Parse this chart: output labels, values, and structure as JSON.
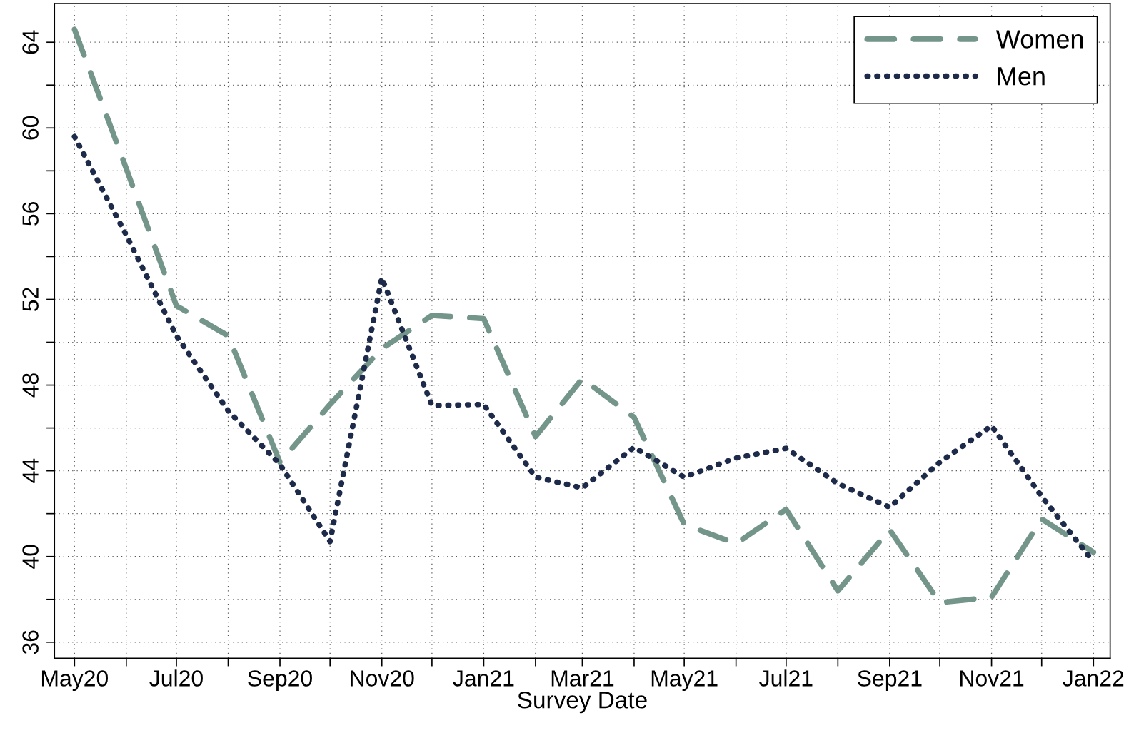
{
  "chart_data": {
    "type": "line",
    "xlabel": "Survey Date",
    "x": [
      "2020-05",
      "2020-06",
      "2020-07",
      "2020-08",
      "2020-09",
      "2020-10",
      "2020-11",
      "2020-12",
      "2021-01",
      "2021-02",
      "2021-03",
      "2021-04",
      "2021-05",
      "2021-06",
      "2021-07",
      "2021-08",
      "2021-09",
      "2021-10",
      "2021-11",
      "2021-12",
      "2022-01"
    ],
    "series": [
      {
        "name": "Women",
        "color": "#74958a",
        "line_style": "dashed",
        "values": [
          64.6,
          58.1,
          51.7,
          50.3,
          44.4,
          47.1,
          49.7,
          51.25,
          51.1,
          45.6,
          48.3,
          46.5,
          41.5,
          40.6,
          42.2,
          38.4,
          41.25,
          37.85,
          38.1,
          41.75,
          40.2
        ]
      },
      {
        "name": "Men",
        "color": "#1e2a4a",
        "line_style": "dotted",
        "values": [
          59.6,
          55.0,
          50.3,
          46.8,
          44.3,
          40.7,
          53.0,
          47.05,
          47.1,
          43.7,
          43.2,
          45.1,
          43.7,
          44.6,
          45.05,
          43.4,
          42.3,
          44.4,
          46.1,
          42.8,
          39.75
        ]
      }
    ],
    "xlim": [
      "2020-04-19",
      "2022-01-11"
    ],
    "xticks": [
      {
        "value": "2020-05",
        "label": "May20"
      },
      {
        "value": "2020-06",
        "label": null
      },
      {
        "value": "2020-07",
        "label": "Jul20"
      },
      {
        "value": "2020-08",
        "label": null
      },
      {
        "value": "2020-09",
        "label": "Sep20"
      },
      {
        "value": "2020-10",
        "label": null
      },
      {
        "value": "2020-11",
        "label": "Nov20"
      },
      {
        "value": "2020-12",
        "label": null
      },
      {
        "value": "2021-01",
        "label": "Jan21"
      },
      {
        "value": "2021-02",
        "label": null
      },
      {
        "value": "2021-03",
        "label": "Mar21"
      },
      {
        "value": "2021-04",
        "label": null
      },
      {
        "value": "2021-05",
        "label": "May21"
      },
      {
        "value": "2021-06",
        "label": null
      },
      {
        "value": "2021-07",
        "label": "Jul21"
      },
      {
        "value": "2021-08",
        "label": null
      },
      {
        "value": "2021-09",
        "label": "Sep21"
      },
      {
        "value": "2021-10",
        "label": null
      },
      {
        "value": "2021-11",
        "label": "Nov21"
      },
      {
        "value": "2021-12",
        "label": null
      },
      {
        "value": "2022-01",
        "label": "Jan22"
      }
    ],
    "ylim": [
      35.25,
      65.8
    ],
    "yticks": [
      36,
      {
        "value": 38,
        "label": null
      },
      40,
      {
        "value": 42,
        "label": null
      },
      44,
      {
        "value": 46,
        "label": null
      },
      48,
      {
        "value": 50,
        "label": null
      },
      52,
      {
        "value": 54,
        "label": null
      },
      56,
      {
        "value": 58,
        "label": null
      },
      60,
      {
        "value": 62,
        "label": null
      },
      64
    ],
    "grid": true,
    "legend": "top right"
  }
}
